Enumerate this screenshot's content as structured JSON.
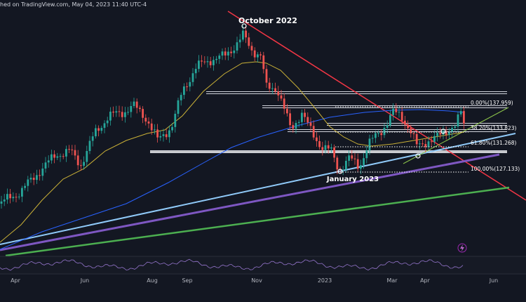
{
  "header": {
    "text": "hed on TradingView.com, May 04, 2023 11:40 UTC-4"
  },
  "colors": {
    "background": "#131722",
    "bullish": "#26a69a",
    "bearish": "#ef5350",
    "ma_fast": "#c9b037",
    "ma_slow": "#2962ff",
    "downtrend": "#f23645",
    "light_support": "#90caf9",
    "purple_support": "#7e57c2",
    "green_support": "#4caf50",
    "small_trend": "#8bc34a",
    "rsi": "#9575cd"
  },
  "chart_data": {
    "type": "candlestick",
    "title": "",
    "xlabel": "",
    "ylabel": "",
    "x_tick_labels": [
      "Apr",
      "Jun",
      "Aug",
      "Sep",
      "Nov",
      "2023",
      "Mar",
      "Apr",
      "Jun"
    ],
    "annotations": {
      "top_label": "October 2022",
      "bottom_label": "January 2023"
    },
    "fib_levels": [
      {
        "label": "0.00%(137.959)"
      },
      {
        "label": "38.20%(133.823)"
      },
      {
        "label": "61.80%(131.268)"
      },
      {
        "label": "100.00%(127.133)"
      }
    ],
    "horizontal_levels": [
      "resistance 1",
      "resistance 2",
      "resistance 3",
      "support 1",
      "support 2"
    ],
    "indicators": [
      "50-period moving average",
      "200-period moving average",
      "RSI"
    ],
    "trendlines": [
      "descending resistance",
      "ascending support (light)",
      "ascending support (purple)",
      "ascending support (green)",
      "short-term channel"
    ],
    "grid": false,
    "legend": "none"
  }
}
